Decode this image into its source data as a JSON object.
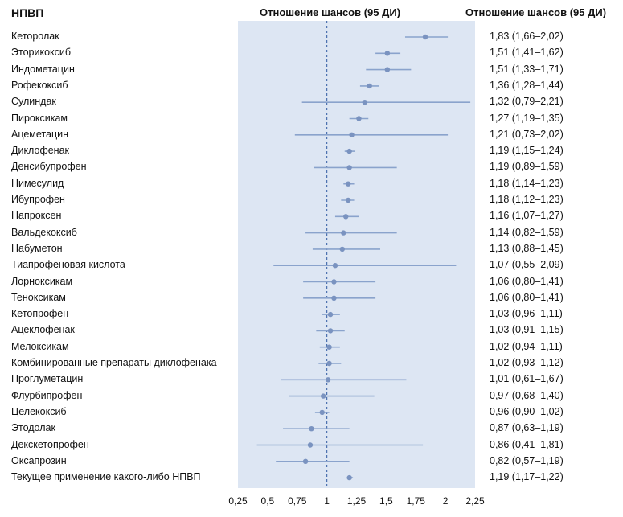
{
  "headers": {
    "drug": "НПВП",
    "plot": "Отношение шансов (95 ДИ)",
    "ci": "Отношение шансов (95 ДИ)"
  },
  "chart_data": {
    "type": "forest",
    "reference_line": 1,
    "xlim": [
      0.25,
      2.25
    ],
    "xticks": [
      "0,25",
      "0,5",
      "0,75",
      "1",
      "1,25",
      "1,5",
      "1,75",
      "2",
      "2,25"
    ],
    "xtick_values": [
      0.25,
      0.5,
      0.75,
      1,
      1.25,
      1.5,
      1.75,
      2,
      2.25
    ],
    "colors": {
      "panel": "#dde6f3",
      "line": "#8aa3cc",
      "point": "#7a93c0",
      "ref": "#4a6fae"
    },
    "rows": [
      {
        "label": "Кеторолак",
        "or": 1.83,
        "lo": 1.66,
        "hi": 2.02,
        "text": "1,83 (1,66–2,02)"
      },
      {
        "label": "Эторикоксиб",
        "or": 1.51,
        "lo": 1.41,
        "hi": 1.62,
        "text": "1,51 (1,41–1,62)"
      },
      {
        "label": "Индометацин",
        "or": 1.51,
        "lo": 1.33,
        "hi": 1.71,
        "text": "1,51 (1,33–1,71)"
      },
      {
        "label": "Рофекоксиб",
        "or": 1.36,
        "lo": 1.28,
        "hi": 1.44,
        "text": "1,36 (1,28–1,44)"
      },
      {
        "label": "Сулиндак",
        "or": 1.32,
        "lo": 0.79,
        "hi": 2.21,
        "text": "1,32 (0,79–2,21)"
      },
      {
        "label": "Пироксикам",
        "or": 1.27,
        "lo": 1.19,
        "hi": 1.35,
        "text": "1,27 (1,19–1,35)"
      },
      {
        "label": "Ацеметацин",
        "or": 1.21,
        "lo": 0.73,
        "hi": 2.02,
        "text": "1,21 (0,73–2,02)"
      },
      {
        "label": "Диклофенак",
        "or": 1.19,
        "lo": 1.15,
        "hi": 1.24,
        "text": "1,19 (1,15–1,24)"
      },
      {
        "label": "Денсибупрофен",
        "or": 1.19,
        "lo": 0.89,
        "hi": 1.59,
        "text": "1,19 (0,89–1,59)"
      },
      {
        "label": "Нимесулид",
        "or": 1.18,
        "lo": 1.14,
        "hi": 1.23,
        "text": "1,18 (1,14–1,23)"
      },
      {
        "label": "Ибупрофен",
        "or": 1.18,
        "lo": 1.12,
        "hi": 1.23,
        "text": "1,18 (1,12–1,23)"
      },
      {
        "label": "Напроксен",
        "or": 1.16,
        "lo": 1.07,
        "hi": 1.27,
        "text": "1,16 (1,07–1,27)"
      },
      {
        "label": "Вальдекоксиб",
        "or": 1.14,
        "lo": 0.82,
        "hi": 1.59,
        "text": "1,14 (0,82–1,59)"
      },
      {
        "label": "Набуметон",
        "or": 1.13,
        "lo": 0.88,
        "hi": 1.45,
        "text": "1,13 (0,88–1,45)"
      },
      {
        "label": "Тиапрофеновая кислота",
        "or": 1.07,
        "lo": 0.55,
        "hi": 2.09,
        "text": "1,07 (0,55–2,09)"
      },
      {
        "label": "Лорноксикам",
        "or": 1.06,
        "lo": 0.8,
        "hi": 1.41,
        "text": "1,06 (0,80–1,41)"
      },
      {
        "label": "Теноксикам",
        "or": 1.06,
        "lo": 0.8,
        "hi": 1.41,
        "text": "1,06 (0,80–1,41)"
      },
      {
        "label": "Кетопрофен",
        "or": 1.03,
        "lo": 0.96,
        "hi": 1.11,
        "text": "1,03 (0,96–1,11)"
      },
      {
        "label": "Ацеклофенак",
        "or": 1.03,
        "lo": 0.91,
        "hi": 1.15,
        "text": "1,03 (0,91–1,15)"
      },
      {
        "label": "Мелоксикам",
        "or": 1.02,
        "lo": 0.94,
        "hi": 1.11,
        "text": "1,02 (0,94–1,11)"
      },
      {
        "label": "Комбинированные препараты диклофенака",
        "or": 1.02,
        "lo": 0.93,
        "hi": 1.12,
        "text": "1,02 (0,93–1,12)"
      },
      {
        "label": "Проглуметацин",
        "or": 1.01,
        "lo": 0.61,
        "hi": 1.67,
        "text": "1,01 (0,61–1,67)"
      },
      {
        "label": "Флурбипрофен",
        "or": 0.97,
        "lo": 0.68,
        "hi": 1.4,
        "text": "0,97 (0,68–1,40)"
      },
      {
        "label": "Целекоксиб",
        "or": 0.96,
        "lo": 0.9,
        "hi": 1.02,
        "text": "0,96 (0,90–1,02)"
      },
      {
        "label": "Этодолак",
        "or": 0.87,
        "lo": 0.63,
        "hi": 1.19,
        "text": "0,87 (0,63–1,19)"
      },
      {
        "label": "Декскетопрофен",
        "or": 0.86,
        "lo": 0.41,
        "hi": 1.81,
        "text": "0,86 (0,41–1,81)"
      },
      {
        "label": "Оксапрозин",
        "or": 0.82,
        "lo": 0.57,
        "hi": 1.19,
        "text": "0,82 (0,57–1,19)"
      },
      {
        "label": "Текущее применение какого-либо НПВП",
        "or": 1.19,
        "lo": 1.17,
        "hi": 1.22,
        "text": "1,19 (1,17–1,22)"
      }
    ]
  }
}
